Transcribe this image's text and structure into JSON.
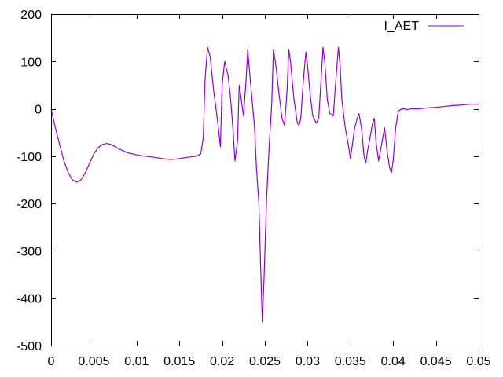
{
  "chart_data": {
    "type": "line",
    "title": "",
    "xlabel": "",
    "ylabel": "",
    "xlim": [
      0,
      0.05
    ],
    "ylim": [
      -500,
      200
    ],
    "x_ticks": [
      0,
      0.005,
      0.01,
      0.015,
      0.02,
      0.025,
      0.03,
      0.035,
      0.04,
      0.045,
      0.05
    ],
    "x_tick_labels": [
      "0",
      "0.005",
      "0.01",
      "0.015",
      "0.02",
      "0.025",
      "0.03",
      "0.035",
      "0.04",
      "0.045",
      "0.05"
    ],
    "y_ticks": [
      200,
      100,
      0,
      -100,
      -200,
      -300,
      -400,
      -500
    ],
    "y_tick_labels": [
      "200",
      "100",
      "0",
      "-100",
      "-200",
      "-300",
      "-400",
      "-500"
    ],
    "grid": false,
    "legend": "top-right",
    "series": [
      {
        "name": "I_AET",
        "color": "#9400d3",
        "x": [
          0,
          0.0005,
          0.001,
          0.0015,
          0.002,
          0.0025,
          0.003,
          0.0035,
          0.004,
          0.0045,
          0.005,
          0.0055,
          0.006,
          0.0065,
          0.007,
          0.008,
          0.009,
          0.01,
          0.011,
          0.012,
          0.013,
          0.014,
          0.015,
          0.016,
          0.017,
          0.0175,
          0.0178,
          0.018,
          0.0183,
          0.0186,
          0.019,
          0.0195,
          0.0198,
          0.02,
          0.0203,
          0.0207,
          0.021,
          0.0213,
          0.0215,
          0.0218,
          0.022,
          0.0222,
          0.0225,
          0.0228,
          0.023,
          0.0232,
          0.0235,
          0.0238,
          0.024,
          0.0243,
          0.0245,
          0.0247,
          0.0249,
          0.0252,
          0.0255,
          0.0258,
          0.026,
          0.0263,
          0.0266,
          0.027,
          0.0273,
          0.0276,
          0.0278,
          0.028,
          0.0284,
          0.0288,
          0.029,
          0.0292,
          0.0295,
          0.0298,
          0.03,
          0.0303,
          0.0306,
          0.031,
          0.0313,
          0.0316,
          0.0318,
          0.032,
          0.0323,
          0.0326,
          0.033,
          0.0333,
          0.0336,
          0.0338,
          0.034,
          0.0344,
          0.0348,
          0.035,
          0.0352,
          0.0355,
          0.0358,
          0.036,
          0.0363,
          0.0366,
          0.0368,
          0.037,
          0.0373,
          0.0376,
          0.0378,
          0.038,
          0.0383,
          0.0385,
          0.0388,
          0.039,
          0.0393,
          0.0396,
          0.0398,
          0.04,
          0.0403,
          0.0406,
          0.041,
          0.0413,
          0.0416,
          0.042,
          0.043,
          0.044,
          0.045,
          0.046,
          0.047,
          0.048,
          0.049,
          0.05
        ],
        "y": [
          0,
          -40,
          -75,
          -110,
          -135,
          -150,
          -155,
          -150,
          -135,
          -115,
          -95,
          -82,
          -75,
          -73,
          -75,
          -85,
          -93,
          -97,
          -100,
          -102,
          -105,
          -107,
          -105,
          -102,
          -100,
          -95,
          -60,
          60,
          130,
          110,
          40,
          -30,
          -80,
          50,
          100,
          70,
          20,
          -50,
          -110,
          -70,
          50,
          25,
          -15,
          60,
          125,
          80,
          20,
          -40,
          -120,
          -200,
          -330,
          -450,
          -360,
          -190,
          -80,
          10,
          125,
          90,
          40,
          -20,
          -35,
          40,
          125,
          100,
          20,
          -30,
          -35,
          -20,
          60,
          120,
          90,
          30,
          -15,
          -30,
          -20,
          70,
          130,
          100,
          20,
          -10,
          -15,
          60,
          130,
          90,
          20,
          -40,
          -80,
          -105,
          -80,
          -40,
          -20,
          -10,
          -40,
          -100,
          -115,
          -90,
          -60,
          -30,
          -20,
          -70,
          -110,
          -90,
          -60,
          -40,
          -90,
          -125,
          -135,
          -110,
          -40,
          -5,
          0,
          0,
          -2,
          0,
          0,
          2,
          3,
          5,
          7,
          8,
          10,
          10
        ]
      }
    ]
  }
}
